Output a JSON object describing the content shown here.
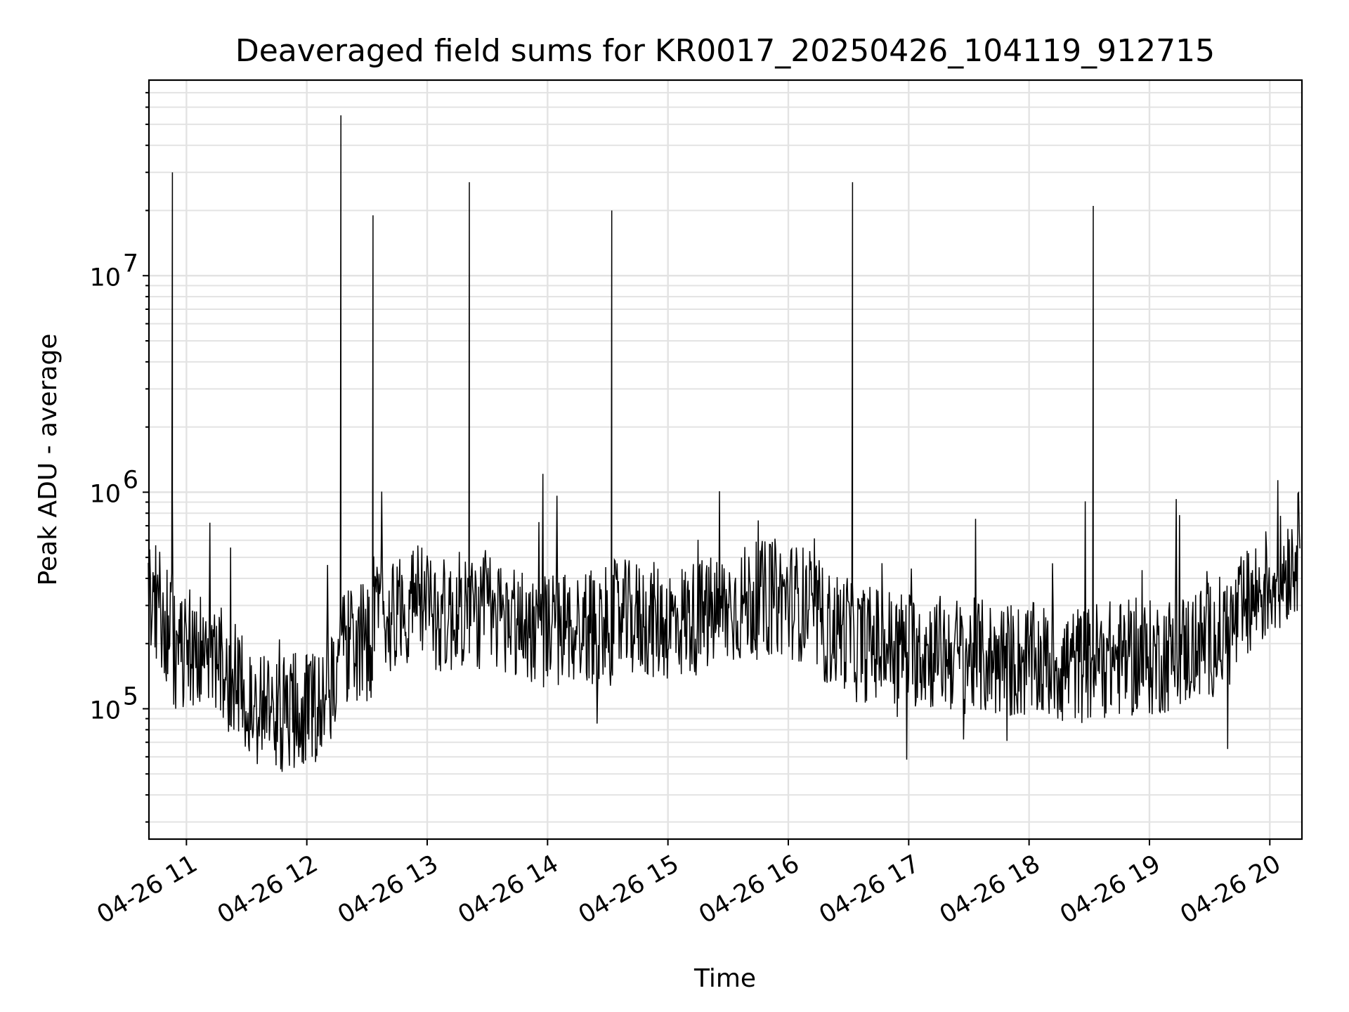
{
  "chart_data": {
    "type": "line",
    "title": "Deaveraged field sums for KR0017_20250426_104119_912715",
    "xlabel": "Time",
    "ylabel": "Peak ADU - average",
    "yscale": "log",
    "xlim": [
      "2025-04-26T10:41:19",
      "2025-04-26T20:16:00"
    ],
    "ylim": [
      25000,
      80000000
    ],
    "grid": true,
    "legend": "none",
    "line_color": "#000000",
    "x_ticks": [
      {
        "t": "2025-04-26T11:00",
        "label": "04-26 11"
      },
      {
        "t": "2025-04-26T12:00",
        "label": "04-26 12"
      },
      {
        "t": "2025-04-26T13:00",
        "label": "04-26 13"
      },
      {
        "t": "2025-04-26T14:00",
        "label": "04-26 14"
      },
      {
        "t": "2025-04-26T15:00",
        "label": "04-26 15"
      },
      {
        "t": "2025-04-26T16:00",
        "label": "04-26 16"
      },
      {
        "t": "2025-04-26T17:00",
        "label": "04-26 17"
      },
      {
        "t": "2025-04-26T18:00",
        "label": "04-26 18"
      },
      {
        "t": "2025-04-26T19:00",
        "label": "04-26 19"
      },
      {
        "t": "2025-04-26T20:00",
        "label": "04-26 20"
      }
    ],
    "y_ticks": [
      {
        "value": 100000,
        "base": "10",
        "exp": "5"
      },
      {
        "value": 1000000,
        "base": "10",
        "exp": "6"
      },
      {
        "value": 10000000,
        "base": "10",
        "exp": "7"
      }
    ],
    "series": [
      {
        "x": [
          "2025-04-26T10:41",
          "2025-04-26T10:50",
          "2025-04-26T10:53",
          "2025-04-26T10:57",
          "2025-04-26T11:00",
          "2025-04-26T11:10",
          "2025-04-26T11:20",
          "2025-04-26T11:30",
          "2025-04-26T11:45",
          "2025-04-26T12:00",
          "2025-04-26T12:08",
          "2025-04-26T12:15",
          "2025-04-26T12:17",
          "2025-04-26T12:25",
          "2025-04-26T12:33",
          "2025-04-26T12:45",
          "2025-04-26T12:55",
          "2025-04-26T13:10",
          "2025-04-26T13:20",
          "2025-04-26T13:21",
          "2025-04-26T13:30",
          "2025-04-26T13:45",
          "2025-04-26T14:00",
          "2025-04-26T14:20",
          "2025-04-26T14:32",
          "2025-04-26T14:45",
          "2025-04-26T15:00",
          "2025-04-26T15:20",
          "2025-04-26T15:40",
          "2025-04-26T15:55",
          "2025-04-26T16:10",
          "2025-04-26T16:20",
          "2025-04-26T16:32",
          "2025-04-26T16:45",
          "2025-04-26T17:00",
          "2025-04-26T17:20",
          "2025-04-26T17:40",
          "2025-04-26T18:00",
          "2025-04-26T18:20",
          "2025-04-26T18:32",
          "2025-04-26T18:45",
          "2025-04-26T19:00",
          "2025-04-26T19:20",
          "2025-04-26T19:40",
          "2025-04-26T19:55",
          "2025-04-26T20:05",
          "2025-04-26T20:15"
        ],
        "y": [
          350000,
          250000,
          30000000,
          180000,
          200000,
          180000,
          150000,
          110000,
          95000,
          100000,
          110000,
          150000,
          55000000,
          200000,
          19000000,
          280000,
          320000,
          260000,
          300000,
          27000000,
          280000,
          250000,
          230000,
          240000,
          20000000,
          260000,
          250000,
          270000,
          310000,
          330000,
          300000,
          230000,
          27000000,
          200000,
          190000,
          180000,
          170000,
          165000,
          160000,
          21000000,
          170000,
          170000,
          190000,
          230000,
          350000,
          420000,
          550000
        ]
      }
    ]
  }
}
